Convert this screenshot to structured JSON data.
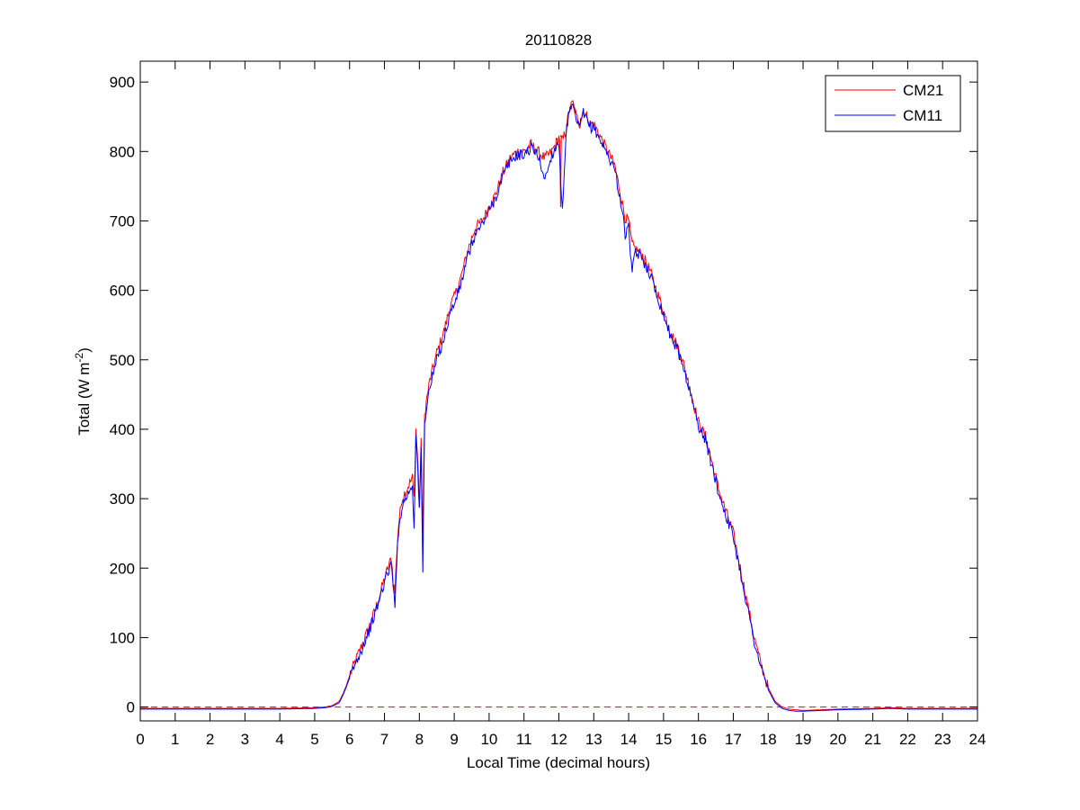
{
  "chart_data": {
    "type": "line",
    "title": "20110828",
    "xlabel": "Local Time (decimal hours)",
    "ylabel": {
      "prefix": "Total (W m",
      "superscript": "-2",
      "suffix": ")"
    },
    "xlim": [
      0,
      24
    ],
    "ylim": [
      -20,
      930
    ],
    "xticks": [
      0,
      1,
      2,
      3,
      4,
      5,
      6,
      7,
      8,
      9,
      10,
      11,
      12,
      13,
      14,
      15,
      16,
      17,
      18,
      19,
      20,
      21,
      22,
      23,
      24
    ],
    "yticks": [
      0,
      100,
      200,
      300,
      400,
      500,
      600,
      700,
      800,
      900
    ],
    "grid": false,
    "legend_position": "top-right",
    "reference_line": {
      "y": 0,
      "color": "#ff0000",
      "style": "dashed"
    },
    "series": [
      {
        "name": "CM21",
        "color": "#ff0000",
        "x": [
          0,
          1,
          2,
          3,
          4,
          5,
          5.3,
          5.5,
          5.7,
          5.8,
          5.9,
          6.0,
          6.2,
          6.4,
          6.6,
          6.8,
          7.0,
          7.1,
          7.2,
          7.25,
          7.3,
          7.35,
          7.4,
          7.5,
          7.6,
          7.7,
          7.8,
          7.85,
          7.9,
          7.95,
          8.0,
          8.05,
          8.1,
          8.15,
          8.2,
          8.3,
          8.5,
          8.7,
          8.9,
          9.0,
          9.2,
          9.4,
          9.6,
          9.8,
          10.0,
          10.2,
          10.4,
          10.6,
          10.8,
          11.0,
          11.2,
          11.4,
          11.6,
          11.8,
          12.0,
          12.1,
          12.2,
          12.3,
          12.4,
          12.5,
          12.6,
          12.7,
          12.8,
          12.9,
          13.0,
          13.2,
          13.4,
          13.6,
          13.8,
          13.9,
          14.0,
          14.1,
          14.2,
          14.4,
          14.6,
          14.8,
          15.0,
          15.2,
          15.4,
          15.6,
          15.8,
          16.0,
          16.2,
          16.4,
          16.6,
          16.8,
          17.0,
          17.2,
          17.4,
          17.6,
          17.8,
          18.0,
          18.2,
          18.4,
          18.6,
          18.8,
          19.0,
          19.5,
          20.0,
          21.0,
          21.5,
          22.0,
          23.0,
          24.0
        ],
        "values": [
          -2,
          -2,
          -2,
          -2,
          -2,
          -1,
          0,
          2,
          8,
          18,
          30,
          45,
          70,
          95,
          120,
          150,
          185,
          200,
          215,
          180,
          165,
          220,
          260,
          300,
          310,
          320,
          330,
          300,
          400,
          360,
          290,
          380,
          250,
          420,
          440,
          470,
          510,
          540,
          580,
          590,
          620,
          660,
          690,
          700,
          720,
          740,
          770,
          790,
          800,
          800,
          810,
          800,
          790,
          800,
          820,
          815,
          830,
          860,
          870,
          850,
          840,
          860,
          850,
          840,
          840,
          820,
          800,
          780,
          730,
          705,
          700,
          665,
          660,
          650,
          630,
          600,
          570,
          540,
          520,
          490,
          450,
          410,
          390,
          350,
          310,
          280,
          250,
          200,
          150,
          100,
          60,
          28,
          8,
          0,
          -3,
          -4,
          -5,
          -4,
          -3,
          -2,
          -1,
          -2,
          -2,
          -2
        ],
        "anomalies": [
          [
            12.05,
            720
          ]
        ]
      },
      {
        "name": "CM11",
        "color": "#0000ff",
        "x": [
          0,
          1,
          2,
          3,
          4,
          5,
          5.3,
          5.5,
          5.7,
          5.8,
          5.9,
          6.0,
          6.2,
          6.4,
          6.6,
          6.8,
          7.0,
          7.1,
          7.2,
          7.25,
          7.3,
          7.35,
          7.4,
          7.5,
          7.6,
          7.7,
          7.8,
          7.85,
          7.9,
          7.95,
          8.0,
          8.05,
          8.1,
          8.15,
          8.2,
          8.3,
          8.5,
          8.7,
          8.9,
          9.0,
          9.2,
          9.4,
          9.6,
          9.8,
          10.0,
          10.2,
          10.4,
          10.6,
          10.8,
          11.0,
          11.2,
          11.4,
          11.6,
          11.8,
          12.0,
          12.1,
          12.2,
          12.3,
          12.4,
          12.5,
          12.6,
          12.7,
          12.8,
          12.9,
          13.0,
          13.2,
          13.4,
          13.6,
          13.8,
          13.9,
          14.0,
          14.1,
          14.2,
          14.4,
          14.6,
          14.8,
          15.0,
          15.2,
          15.4,
          15.6,
          15.8,
          16.0,
          16.2,
          16.4,
          16.6,
          16.8,
          17.0,
          17.2,
          17.4,
          17.6,
          17.8,
          18.0,
          18.2,
          18.4,
          18.6,
          18.8,
          19.0,
          19.5,
          20.0,
          21.0,
          21.5,
          22.0,
          23.0,
          24.0
        ],
        "values": [
          -3,
          -3,
          -3,
          -3,
          -3,
          -2,
          -1,
          1,
          6,
          16,
          28,
          42,
          66,
          90,
          115,
          145,
          180,
          195,
          205,
          170,
          150,
          210,
          250,
          290,
          300,
          310,
          320,
          260,
          390,
          350,
          280,
          370,
          195,
          410,
          430,
          460,
          500,
          530,
          570,
          580,
          610,
          650,
          680,
          695,
          715,
          735,
          765,
          785,
          795,
          795,
          805,
          795,
          760,
          795,
          815,
          710,
          825,
          855,
          865,
          845,
          835,
          855,
          845,
          835,
          835,
          815,
          795,
          775,
          720,
          680,
          690,
          625,
          655,
          645,
          625,
          595,
          565,
          535,
          515,
          485,
          445,
          405,
          385,
          345,
          305,
          275,
          245,
          195,
          145,
          95,
          55,
          25,
          6,
          -2,
          -5,
          -6,
          -6,
          -5,
          -4,
          -3,
          -2,
          -3,
          -3,
          -3
        ]
      }
    ]
  }
}
